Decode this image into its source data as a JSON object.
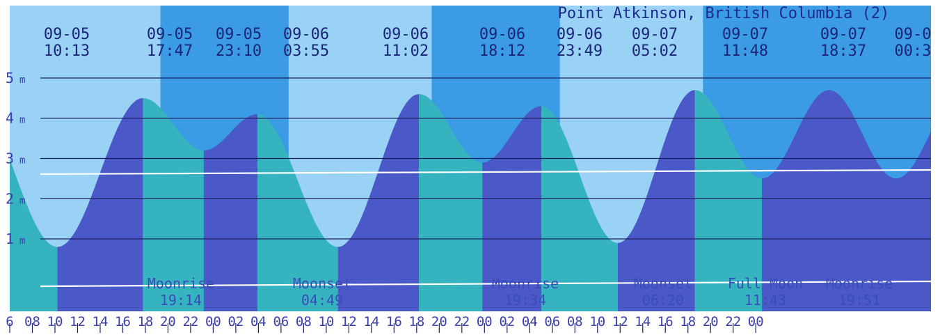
{
  "chart_data": {
    "type": "area",
    "title": "Point Atkinson, British Columbia (2)",
    "ylabel": "",
    "xlabel": "",
    "y_unit": "m",
    "y_ticks": [
      {
        "value": 1,
        "label": "1 m"
      },
      {
        "value": 2,
        "label": "2 m"
      },
      {
        "value": 3,
        "label": "3 m"
      },
      {
        "value": 4,
        "label": "4 m"
      },
      {
        "value": 5,
        "label": "5 m"
      }
    ],
    "ylim": [
      -0.8,
      6.8
    ],
    "x_range_hours": [
      -18,
      63.5
    ],
    "x_origin_note": "hours relative to 2000-09-06 00:00",
    "tide_events": [
      {
        "date": "09-05",
        "time": "10:13",
        "t": -13.783,
        "height": 0.8,
        "kind": "low"
      },
      {
        "date": "09-05",
        "time": "17:47",
        "t": -6.217,
        "height": 4.5,
        "kind": "high"
      },
      {
        "date": "09-05",
        "time": "23:10",
        "t": -0.833,
        "height": 3.2,
        "kind": "low"
      },
      {
        "date": "09-06",
        "time": "03:55",
        "t": 3.917,
        "height": 4.1,
        "kind": "high"
      },
      {
        "date": "09-06",
        "time": "11:02",
        "t": 11.033,
        "height": 0.8,
        "kind": "low"
      },
      {
        "date": "09-06",
        "time": "18:12",
        "t": 18.2,
        "height": 4.6,
        "kind": "high"
      },
      {
        "date": "09-06",
        "time": "23:49",
        "t": 23.817,
        "height": 2.9,
        "kind": "low"
      },
      {
        "date": "09-07",
        "time": "05:02",
        "t": 29.033,
        "height": 4.3,
        "kind": "high"
      },
      {
        "date": "09-07",
        "time": "11:48",
        "t": 35.8,
        "height": 0.9,
        "kind": "low"
      },
      {
        "date": "09-07",
        "time": "18:37",
        "t": 42.617,
        "height": 4.7,
        "kind": "high"
      },
      {
        "date": "09-0",
        "time": "00:3",
        "t": 48.55,
        "height": 2.5,
        "kind": "low"
      }
    ],
    "night_periods": [
      {
        "start": -4.67,
        "end": 6.67
      },
      {
        "start": 19.33,
        "end": 30.67
      },
      {
        "start": 43.33,
        "end": 63.5
      }
    ],
    "astro_events": [
      {
        "label": "Moonrise",
        "time": "19:14",
        "t": -4.767
      },
      {
        "label": "Moonset",
        "time": "04:49",
        "t": 4.817
      },
      {
        "label": "Moonrise",
        "time": "19:34",
        "t": 19.567
      },
      {
        "label": "Moonset",
        "time": "06:20",
        "t": 30.333
      },
      {
        "label": "Full Moon",
        "time": "11:43",
        "t": 35.717
      },
      {
        "label": "Moonrise",
        "time": "19:51",
        "t": 43.85
      }
    ],
    "x_tick_labels": [
      "6",
      "08",
      "10",
      "12",
      "14",
      "16",
      "18",
      "20",
      "22",
      "00",
      "02",
      "04",
      "06",
      "08",
      "10",
      "12",
      "14",
      "16",
      "18",
      "20",
      "22",
      "00",
      "02",
      "04",
      "06",
      "08",
      "10",
      "12",
      "14",
      "16",
      "18",
      "20",
      "22",
      "00"
    ],
    "x_tick_values": [
      -18,
      -16,
      -14,
      -12,
      -10,
      -8,
      -6,
      -4,
      -2,
      0,
      2,
      4,
      6,
      8,
      10,
      12,
      14,
      16,
      18,
      20,
      22,
      24,
      26,
      28,
      30,
      32,
      34,
      36,
      38,
      40,
      42,
      44,
      46,
      48
    ],
    "colors": {
      "day_sky": "#99d2f5",
      "night_sky": "#3b9be4",
      "rising_water": "#4a58c8",
      "falling_water": "#35b4c0",
      "grid": "#1a2060",
      "highlight_line": "#ffffff",
      "text": "#1a2578"
    },
    "grid": true,
    "legend": "none"
  }
}
